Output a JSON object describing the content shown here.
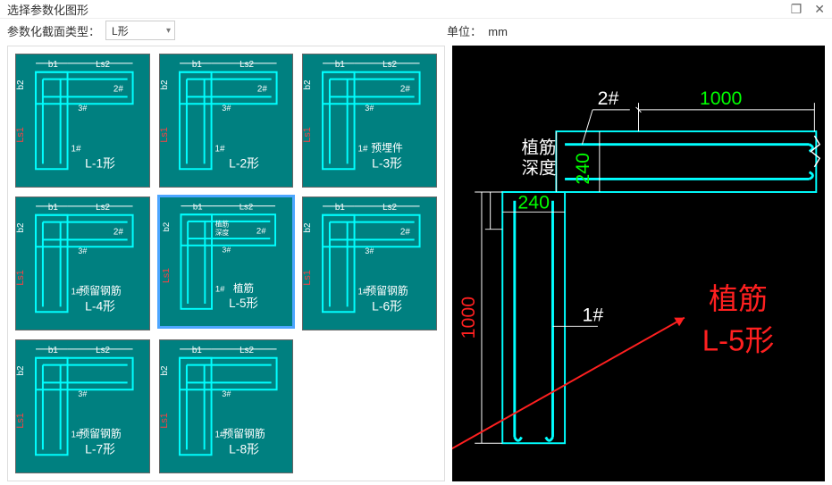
{
  "window": {
    "title": "选择参数化图形"
  },
  "toolbar": {
    "section_type_label": "参数化截面类型：",
    "section_type_value": "L形",
    "unit_label": "单位：",
    "unit_value": "mm"
  },
  "gallery": {
    "selected_index": 4,
    "thumb_bg": "#008080",
    "thumb_line": "#00ffff",
    "thumb_dim_color": "#ffffff",
    "thumb_accent": "#ff4040",
    "thumbs": [
      {
        "caption": "L-1形",
        "note": "",
        "b1": "b1",
        "b2": "b2",
        "ls2": "Ls2",
        "tag2": "2#",
        "tag1": "1#",
        "tag3": "3#"
      },
      {
        "caption": "L-2形",
        "note": "",
        "b1": "b1",
        "b2": "b2",
        "ls2": "Ls2",
        "tag2": "2#",
        "tag1": "1#",
        "tag3": "3#"
      },
      {
        "caption": "L-3形",
        "note": "预埋件",
        "b1": "b1",
        "b2": "b2",
        "ls2": "Ls2",
        "tag2": "2#",
        "tag1": "1#",
        "tag3": "3#"
      },
      {
        "caption": "L-4形",
        "note": "预留钢筋",
        "b1": "b1",
        "b2": "b2",
        "ls2": "Ls2",
        "tag2": "2#",
        "tag1": "1#",
        "tag3": "3#"
      },
      {
        "caption": "L-5形",
        "note": "植筋",
        "b1": "b1",
        "b2": "b2",
        "ls2": "Ls2",
        "tag2": "2#",
        "tag1": "1#",
        "tag3": "3#",
        "depth": "植筋\n深度"
      },
      {
        "caption": "L-6形",
        "note": "预留钢筋",
        "b1": "b1",
        "b2": "b2",
        "ls2": "Ls2",
        "tag2": "2#",
        "tag1": "1#",
        "tag3": "3#"
      },
      {
        "caption": "L-7形",
        "note": "预留钢筋",
        "b1": "b1",
        "b2": "b2",
        "ls2": "Ls2",
        "tag3": "3#",
        "tag1": "1#"
      },
      {
        "caption": "L-8形",
        "note": "预留钢筋",
        "b1": "b1",
        "b2": "b2",
        "ls2": "Ls2",
        "tag3": "3#",
        "tag1": "1#"
      }
    ]
  },
  "preview": {
    "bg": "#000000",
    "line_color": "#00ffff",
    "dim_label_color": "#ffffff",
    "value_color": "#00ff00",
    "vertical_value_color": "#ff2020",
    "big_label_color": "#ff2020",
    "top_width_value": "1000",
    "top_height_value": "240",
    "left_width_value": "240",
    "left_height_value": "1000",
    "tag_top": "2#",
    "tag_left": "1#",
    "depth_label_l1": "植筋",
    "depth_label_l2": "深度",
    "big_label_l1": "植筋",
    "big_label_l2": "L-5形",
    "font_big": 34,
    "font_val": 22,
    "font_lbl": 20
  }
}
